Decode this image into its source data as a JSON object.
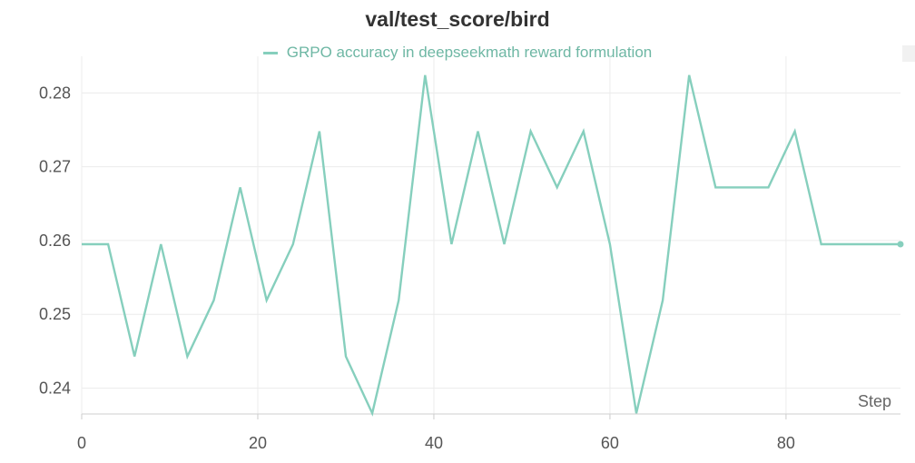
{
  "chart_data": {
    "type": "line",
    "title": "val/test_score/bird",
    "xlabel": "Step",
    "ylabel": "",
    "xlim": [
      0,
      93
    ],
    "ylim": [
      0.2365,
      0.2825
    ],
    "grid": true,
    "legend_placement": "top-center",
    "x_ticks": [
      "0",
      "20",
      "40",
      "60",
      "80"
    ],
    "y_ticks": [
      "0.24",
      "0.25",
      "0.26",
      "0.27",
      "0.28"
    ],
    "series": [
      {
        "name": "GRPO accuracy in deepseekmath reward formulation",
        "color": "#86cfbd",
        "x": [
          0,
          3,
          6,
          9,
          12,
          15,
          18,
          21,
          24,
          27,
          30,
          33,
          36,
          39,
          42,
          45,
          48,
          51,
          54,
          57,
          60,
          63,
          66,
          69,
          72,
          75,
          78,
          81,
          84,
          87,
          90,
          93
        ],
        "y": [
          0.2595,
          0.2595,
          0.2443,
          0.2595,
          0.2443,
          0.2519,
          0.2672,
          0.2519,
          0.2595,
          0.2748,
          0.2443,
          0.2366,
          0.2519,
          0.2824,
          0.2595,
          0.2748,
          0.2595,
          0.2748,
          0.2672,
          0.2748,
          0.2595,
          0.2366,
          0.2519,
          0.2824,
          0.2672,
          0.2672,
          0.2672,
          0.2748,
          0.2595,
          0.2595,
          0.2595,
          0.2595
        ]
      }
    ]
  }
}
